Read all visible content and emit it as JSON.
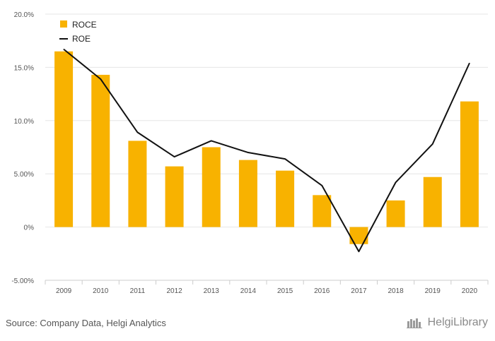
{
  "chart_data": {
    "type": "bar",
    "categories": [
      "2009",
      "2010",
      "2011",
      "2012",
      "2013",
      "2014",
      "2015",
      "2016",
      "2017",
      "2018",
      "2019",
      "2020"
    ],
    "series": [
      {
        "name": "ROCE",
        "type": "bar",
        "color": "#F8B200",
        "values": [
          16.5,
          14.3,
          8.1,
          5.7,
          7.5,
          6.3,
          5.3,
          3.0,
          -1.6,
          2.5,
          4.7,
          11.8
        ]
      },
      {
        "name": "ROE",
        "type": "line",
        "color": "#111111",
        "values": [
          16.7,
          13.9,
          8.9,
          6.6,
          8.1,
          7.0,
          6.4,
          3.9,
          -2.3,
          4.2,
          7.8,
          15.4
        ]
      }
    ],
    "ylim": [
      -5,
      20
    ],
    "yticks": [
      -5,
      0,
      5,
      10,
      15,
      20
    ],
    "ytick_labels": [
      "-5.00%",
      "0%",
      "5.00%",
      "10.0%",
      "15.0%",
      "20.0%"
    ],
    "grid": true,
    "legend_position": "top-left",
    "title": "",
    "xlabel": "",
    "ylabel": ""
  },
  "footer": {
    "source": "Source: Company Data, Helgi Analytics",
    "brand_name": "HelgiLibrary"
  }
}
